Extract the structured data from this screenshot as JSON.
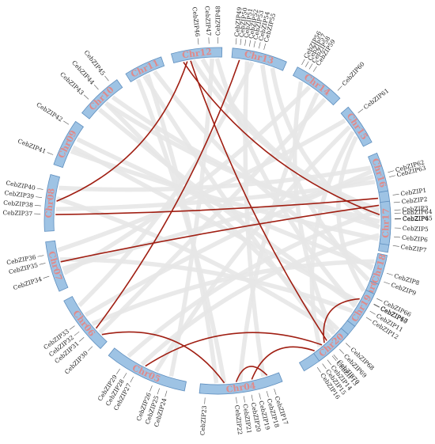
{
  "colors": {
    "chromosome_fill": "#9ec3e4",
    "chromosome_stroke": "#5f8fbf",
    "chromosome_label": "#e08a8a",
    "background_link": "#e7e7e7",
    "highlight_link": "#a01e12",
    "gene_label": "#222222"
  },
  "chromosomes": [
    {
      "name": "Chr01",
      "start": 80.0,
      "end": 100.5,
      "genes": [
        {
          "label": "CebZIP1",
          "pos": 0.08
        },
        {
          "label": "CebZIP2",
          "pos": 0.2
        },
        {
          "label": "CebZIP3",
          "pos": 0.32
        },
        {
          "label": "CebZIP4",
          "pos": 0.46
        },
        {
          "label": "CebZIP5",
          "pos": 0.6
        },
        {
          "label": "CebZIP6",
          "pos": 0.74
        },
        {
          "label": "CebZIP7",
          "pos": 0.88
        }
      ]
    },
    {
      "name": "Chr02",
      "start": 103.0,
      "end": 124.0,
      "genes": [
        {
          "label": "CebZIP8",
          "pos": 0.2
        },
        {
          "label": "CebZIP9",
          "pos": 0.34
        },
        {
          "label": "CebZIP10",
          "pos": 0.72
        },
        {
          "label": "CebZIP11",
          "pos": 0.84
        },
        {
          "label": "CebZIP12",
          "pos": 0.95
        }
      ]
    },
    {
      "name": "Chr03",
      "start": 127.5,
      "end": 150.0,
      "genes": [
        {
          "label": "CebZIP13",
          "pos": 0.54
        },
        {
          "label": "CebZIP14",
          "pos": 0.63
        },
        {
          "label": "CebZIP15",
          "pos": 0.72
        },
        {
          "label": "CebZIP16",
          "pos": 0.81
        }
      ]
    },
    {
      "name": "Chr04",
      "start": 158.0,
      "end": 186.0,
      "genes": [
        {
          "label": "CebZIP17",
          "pos": 0.12
        },
        {
          "label": "CebZIP18",
          "pos": 0.21
        },
        {
          "label": "CebZIP19",
          "pos": 0.3
        },
        {
          "label": "CebZIP20",
          "pos": 0.39
        },
        {
          "label": "CebZIP21",
          "pos": 0.48
        },
        {
          "label": "CebZIP22",
          "pos": 0.57
        },
        {
          "label": "CebZIP23",
          "pos": 0.93
        }
      ]
    },
    {
      "name": "Chr05",
      "start": 191.0,
      "end": 219.0,
      "genes": [
        {
          "label": "CebZIP24",
          "pos": 0.2
        },
        {
          "label": "CebZIP25",
          "pos": 0.29
        },
        {
          "label": "CebZIP26",
          "pos": 0.38
        },
        {
          "label": "CebZIP27",
          "pos": 0.62
        },
        {
          "label": "CebZIP28",
          "pos": 0.71
        },
        {
          "label": "CebZIP29",
          "pos": 0.8
        }
      ]
    },
    {
      "name": "Chr06",
      "start": 222.5,
      "end": 242.5,
      "genes": [
        {
          "label": "CebZIP30",
          "pos": 0.12
        },
        {
          "label": "CebZIP31",
          "pos": 0.32
        },
        {
          "label": "CebZIP32",
          "pos": 0.44
        },
        {
          "label": "CebZIP33",
          "pos": 0.56
        }
      ]
    },
    {
      "name": "Chr07",
      "start": 246.0,
      "end": 263.0,
      "genes": [
        {
          "label": "CebZIP34",
          "pos": 0.34
        },
        {
          "label": "CebZIP35",
          "pos": 0.6
        },
        {
          "label": "CebZIP36",
          "pos": 0.75
        }
      ]
    },
    {
      "name": "Chr08",
      "start": 266.5,
      "end": 285.5,
      "genes": [
        {
          "label": "CebZIP37",
          "pos": 0.3
        },
        {
          "label": "CebZIP38",
          "pos": 0.44
        },
        {
          "label": "CebZIP39",
          "pos": 0.58
        },
        {
          "label": "CebZIP40",
          "pos": 0.72
        }
      ]
    },
    {
      "name": "Chr09",
      "start": 289.0,
      "end": 305.0,
      "genes": [
        {
          "label": "CebZIP41",
          "pos": 0.18
        },
        {
          "label": "CebZIP42",
          "pos": 0.87
        }
      ]
    },
    {
      "name": "Chr10",
      "start": 308.5,
      "end": 324.5,
      "genes": [
        {
          "label": "CebZIP43",
          "pos": 0.3
        },
        {
          "label": "CebZIP44",
          "pos": 0.58
        },
        {
          "label": "CebZIP45",
          "pos": 0.85
        }
      ]
    },
    {
      "name": "Chr11",
      "start": 328.0,
      "end": 341.0,
      "genes": []
    },
    {
      "name": "Chr12",
      "start": 344.5,
      "end": 361.5,
      "genes": [
        {
          "label": "CebZIP46",
          "pos": 0.55
        },
        {
          "label": "CebZIP47",
          "pos": 0.75
        },
        {
          "label": "CebZIP48",
          "pos": 0.92
        }
      ]
    },
    {
      "name": "Chr13",
      "start": 365.0,
      "end": 383.5,
      "genes": [
        {
          "label": "CebZIP49",
          "pos": 0.05
        },
        {
          "label": "CebZIP50",
          "pos": 0.13
        },
        {
          "label": "CebZIP51",
          "pos": 0.21
        },
        {
          "label": "CebZIP52",
          "pos": 0.29
        },
        {
          "label": "CebZIP53",
          "pos": 0.37
        },
        {
          "label": "CebZIP54",
          "pos": 0.46
        },
        {
          "label": "CebZIP55",
          "pos": 0.55
        }
      ]
    },
    {
      "name": "Chr14",
      "start": 387.5,
      "end": 405.0,
      "genes": [
        {
          "label": "CebZIP56",
          "pos": 0.05
        },
        {
          "label": "CebZIP57",
          "pos": 0.13
        },
        {
          "label": "CebZIP58",
          "pos": 0.21
        },
        {
          "label": "CebZIP59",
          "pos": 0.3
        },
        {
          "label": "CebZIP60",
          "pos": 0.87
        }
      ]
    },
    {
      "name": "Chr15",
      "start": 409.0,
      "end": 423.0,
      "genes": [
        {
          "label": "CebZIP61",
          "pos": 0.25
        }
      ]
    },
    {
      "name": "Chr16",
      "start": 427.0,
      "end": 440.0,
      "genes": [
        {
          "label": "CebZIP62",
          "pos": 0.55
        },
        {
          "label": "CebZIP63",
          "pos": 0.67
        }
      ]
    },
    {
      "name": "Chr17",
      "start": 443.5,
      "end": 458.0,
      "genes": [
        {
          "label": "CebZIP64",
          "pos": 0.28
        },
        {
          "label": "CebZIP65",
          "pos": 0.4
        }
      ]
    },
    {
      "name": "Chr18",
      "start": 461.5,
      "end": 471.5,
      "genes": []
    },
    {
      "name": "Chr19",
      "start": 475.0,
      "end": 487.5,
      "genes": [
        {
          "label": "CebZIP66",
          "pos": 0.08
        },
        {
          "label": "CebZIP67",
          "pos": 0.24
        }
      ]
    },
    {
      "name": "Chr20",
      "start": 491.0,
      "end": 504.0,
      "genes": [
        {
          "label": "CebZIP68",
          "pos": 0.2
        },
        {
          "label": "CebZIP69",
          "pos": 0.42
        },
        {
          "label": "CebZIP70",
          "pos": 0.62
        }
      ]
    }
  ],
  "highlight_links": [
    {
      "from": {
        "chr": "Chr12",
        "pos": 0.2
      },
      "to": {
        "chr": "Chr17",
        "pos": 0.3
      }
    },
    {
      "from": {
        "chr": "Chr12",
        "pos": 0.35
      },
      "to": {
        "chr": "Chr03",
        "pos": 0.45
      }
    },
    {
      "from": {
        "chr": "Chr12",
        "pos": 0.28
      },
      "to": {
        "chr": "Chr08",
        "pos": 0.55
      }
    },
    {
      "from": {
        "chr": "Chr13",
        "pos": 0.15
      },
      "to": {
        "chr": "Chr06",
        "pos": 0.3
      }
    },
    {
      "from": {
        "chr": "Chr19",
        "pos": 0.3
      },
      "to": {
        "chr": "Chr20",
        "pos": 0.6
      }
    },
    {
      "from": {
        "chr": "Chr01",
        "pos": 0.1
      },
      "to": {
        "chr": "Chr08",
        "pos": 0.3
      }
    },
    {
      "from": {
        "chr": "Chr01",
        "pos": 0.22
      },
      "to": {
        "chr": "Chr07",
        "pos": 0.55
      }
    },
    {
      "from": {
        "chr": "Chr03",
        "pos": 0.55
      },
      "to": {
        "chr": "Chr05",
        "pos": 0.55
      }
    },
    {
      "from": {
        "chr": "Chr03",
        "pos": 0.7
      },
      "to": {
        "chr": "Chr04",
        "pos": 0.35
      }
    },
    {
      "from": {
        "chr": "Chr04",
        "pos": 0.15
      },
      "to": {
        "chr": "Chr04",
        "pos": 0.55
      }
    },
    {
      "from": {
        "chr": "Chr04",
        "pos": 0.7
      },
      "to": {
        "chr": "Chr06",
        "pos": 0.15
      }
    }
  ],
  "background_links": [
    {
      "from": {
        "chr": "Chr14",
        "pos": 0.2
      },
      "to": {
        "chr": "Chr03",
        "pos": 0.3
      }
    },
    {
      "from": {
        "chr": "Chr14",
        "pos": 0.6
      },
      "to": {
        "chr": "Chr04",
        "pos": 0.5
      }
    },
    {
      "from": {
        "chr": "Chr15",
        "pos": 0.4
      },
      "to": {
        "chr": "Chr05",
        "pos": 0.4
      }
    },
    {
      "from": {
        "chr": "Chr15",
        "pos": 0.7
      },
      "to": {
        "chr": "Chr02",
        "pos": 0.6
      }
    },
    {
      "from": {
        "chr": "Chr16",
        "pos": 0.4
      },
      "to": {
        "chr": "Chr06",
        "pos": 0.6
      }
    },
    {
      "from": {
        "chr": "Chr16",
        "pos": 0.7
      },
      "to": {
        "chr": "Chr08",
        "pos": 0.4
      }
    },
    {
      "from": {
        "chr": "Chr13",
        "pos": 0.6
      },
      "to": {
        "chr": "Chr02",
        "pos": 0.4
      }
    },
    {
      "from": {
        "chr": "Chr13",
        "pos": 0.8
      },
      "to": {
        "chr": "Chr01",
        "pos": 0.6
      }
    },
    {
      "from": {
        "chr": "Chr12",
        "pos": 0.6
      },
      "to": {
        "chr": "Chr01",
        "pos": 0.4
      }
    },
    {
      "from": {
        "chr": "Chr11",
        "pos": 0.4
      },
      "to": {
        "chr": "Chr20",
        "pos": 0.4
      }
    },
    {
      "from": {
        "chr": "Chr11",
        "pos": 0.7
      },
      "to": {
        "chr": "Chr02",
        "pos": 0.2
      }
    },
    {
      "from": {
        "chr": "Chr10",
        "pos": 0.3
      },
      "to": {
        "chr": "Chr19",
        "pos": 0.5
      }
    },
    {
      "from": {
        "chr": "Chr10",
        "pos": 0.7
      },
      "to": {
        "chr": "Chr17",
        "pos": 0.6
      }
    },
    {
      "from": {
        "chr": "Chr09",
        "pos": 0.4
      },
      "to": {
        "chr": "Chr01",
        "pos": 0.8
      }
    },
    {
      "from": {
        "chr": "Chr09",
        "pos": 0.7
      },
      "to": {
        "chr": "Chr18",
        "pos": 0.5
      }
    },
    {
      "from": {
        "chr": "Chr08",
        "pos": 0.8
      },
      "to": {
        "chr": "Chr16",
        "pos": 0.3
      }
    },
    {
      "from": {
        "chr": "Chr07",
        "pos": 0.3
      },
      "to": {
        "chr": "Chr14",
        "pos": 0.4
      }
    },
    {
      "from": {
        "chr": "Chr07",
        "pos": 0.8
      },
      "to": {
        "chr": "Chr15",
        "pos": 0.2
      }
    },
    {
      "from": {
        "chr": "Chr06",
        "pos": 0.8
      },
      "to": {
        "chr": "Chr13",
        "pos": 0.4
      }
    },
    {
      "from": {
        "chr": "Chr05",
        "pos": 0.2
      },
      "to": {
        "chr": "Chr12",
        "pos": 0.8
      }
    },
    {
      "from": {
        "chr": "Chr05",
        "pos": 0.8
      },
      "to": {
        "chr": "Chr17",
        "pos": 0.2
      }
    },
    {
      "from": {
        "chr": "Chr04",
        "pos": 0.8
      },
      "to": {
        "chr": "Chr11",
        "pos": 0.5
      }
    },
    {
      "from": {
        "chr": "Chr03",
        "pos": 0.2
      },
      "to": {
        "chr": "Chr10",
        "pos": 0.5
      }
    },
    {
      "from": {
        "chr": "Chr02",
        "pos": 0.8
      },
      "to": {
        "chr": "Chr09",
        "pos": 0.5
      }
    },
    {
      "from": {
        "chr": "Chr01",
        "pos": 0.3
      },
      "to": {
        "chr": "Chr12",
        "pos": 0.4
      }
    },
    {
      "from": {
        "chr": "Chr18",
        "pos": 0.3
      },
      "to": {
        "chr": "Chr06",
        "pos": 0.4
      }
    },
    {
      "from": {
        "chr": "Chr19",
        "pos": 0.7
      },
      "to": {
        "chr": "Chr07",
        "pos": 0.6
      }
    },
    {
      "from": {
        "chr": "Chr20",
        "pos": 0.2
      },
      "to": {
        "chr": "Chr08",
        "pos": 0.6
      }
    },
    {
      "from": {
        "chr": "Chr17",
        "pos": 0.8
      },
      "to": {
        "chr": "Chr05",
        "pos": 0.6
      }
    },
    {
      "from": {
        "chr": "Chr14",
        "pos": 0.8
      },
      "to": {
        "chr": "Chr06",
        "pos": 0.2
      }
    },
    {
      "from": {
        "chr": "Chr13",
        "pos": 0.3
      },
      "to": {
        "chr": "Chr04",
        "pos": 0.2
      }
    },
    {
      "from": {
        "chr": "Chr15",
        "pos": 0.55
      },
      "to": {
        "chr": "Chr03",
        "pos": 0.6
      }
    },
    {
      "from": {
        "chr": "Chr12",
        "pos": 0.9
      },
      "to": {
        "chr": "Chr02",
        "pos": 0.9
      }
    },
    {
      "from": {
        "chr": "Chr10",
        "pos": 0.5
      },
      "to": {
        "chr": "Chr01",
        "pos": 0.5
      }
    },
    {
      "from": {
        "chr": "Chr11",
        "pos": 0.2
      },
      "to": {
        "chr": "Chr04",
        "pos": 0.7
      }
    },
    {
      "from": {
        "chr": "Chr16",
        "pos": 0.55
      },
      "to": {
        "chr": "Chr07",
        "pos": 0.4
      }
    }
  ]
}
